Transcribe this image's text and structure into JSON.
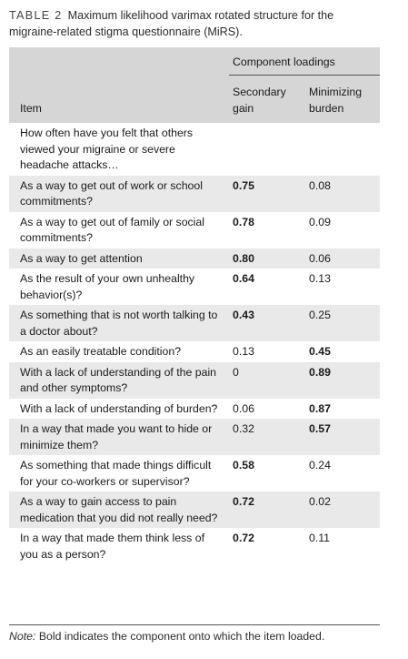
{
  "caption": {
    "label": "TABLE 2",
    "text": "Maximum likelihood varimax rotated structure for the migraine-related stigma questionnaire (MiRS)."
  },
  "header": {
    "item": "Item",
    "group": "Component loadings",
    "col1": "Secondary gain",
    "col2": "Minimizing burden"
  },
  "rows": [
    {
      "item": "How often have you felt that others viewed your migraine or severe headache attacks…",
      "v1": "",
      "v2": "",
      "b1": false,
      "b2": false
    },
    {
      "item": "As a way to get out of work or school commitments?",
      "v1": "0.75",
      "v2": "0.08",
      "b1": true,
      "b2": false
    },
    {
      "item": "As a way to get out of family or social commitments?",
      "v1": "0.78",
      "v2": "0.09",
      "b1": true,
      "b2": false
    },
    {
      "item": "As a way to get attention",
      "v1": "0.80",
      "v2": "0.06",
      "b1": true,
      "b2": false
    },
    {
      "item": "As the result of your own unhealthy behavior(s)?",
      "v1": "0.64",
      "v2": "0.13",
      "b1": true,
      "b2": false
    },
    {
      "item": "As something that is not worth talking to a doctor about?",
      "v1": "0.43",
      "v2": "0.25",
      "b1": true,
      "b2": false
    },
    {
      "item": "As an easily treatable condition?",
      "v1": "0.13",
      "v2": "0.45",
      "b1": false,
      "b2": true
    },
    {
      "item": "With a lack of understanding of the pain and other symptoms?",
      "v1": "0",
      "v2": "0.89",
      "b1": false,
      "b2": true
    },
    {
      "item": "With a lack of understanding of burden?",
      "v1": "0.06",
      "v2": "0.87",
      "b1": false,
      "b2": true
    },
    {
      "item": "In a way that made you want to hide or minimize them?",
      "v1": "0.32",
      "v2": "0.57",
      "b1": false,
      "b2": true
    },
    {
      "item": "As something that made things difficult for your co-workers or supervisor?",
      "v1": "0.58",
      "v2": "0.24",
      "b1": true,
      "b2": false
    },
    {
      "item": "As a way to gain access to pain medication that you did not really need?",
      "v1": "0.72",
      "v2": "0.02",
      "b1": true,
      "b2": false
    },
    {
      "item": "In a way that made them think less of you as a person?",
      "v1": "0.72",
      "v2": "0.11",
      "b1": true,
      "b2": false
    }
  ],
  "note": {
    "label": "Note:",
    "text": "Bold indicates the component onto which the item loaded."
  }
}
